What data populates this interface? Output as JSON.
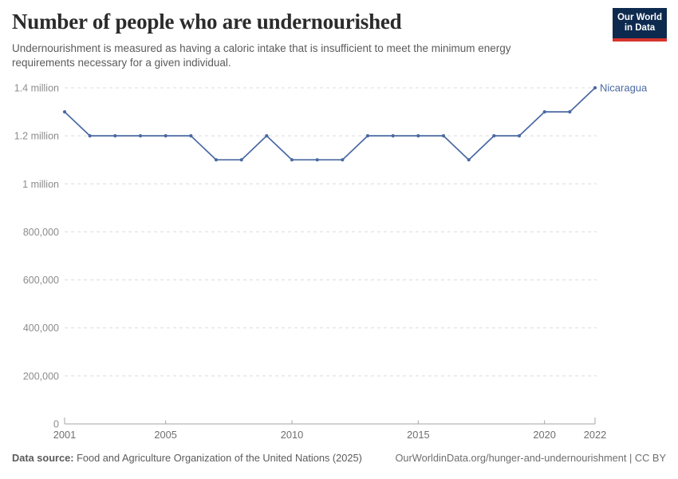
{
  "chart_data": {
    "type": "line",
    "title": "Number of people who are undernourished",
    "subtitle": "Undernourishment is measured as having a caloric intake that is insufficient to meet the minimum energy requirements necessary for a given individual.",
    "xlabel": "",
    "ylabel": "",
    "xlim": [
      2001,
      2022
    ],
    "ylim": [
      0,
      1400000
    ],
    "grid": true,
    "legend_position": "end-of-line",
    "series": [
      {
        "name": "Nicaragua",
        "color": "#4a69a2",
        "x": [
          2001,
          2002,
          2003,
          2004,
          2005,
          2006,
          2007,
          2008,
          2009,
          2010,
          2011,
          2012,
          2013,
          2014,
          2015,
          2016,
          2017,
          2018,
          2019,
          2020,
          2021,
          2022
        ],
        "values": [
          1300000,
          1200000,
          1200000,
          1200000,
          1200000,
          1200000,
          1100000,
          1100000,
          1200000,
          1100000,
          1100000,
          1100000,
          1200000,
          1200000,
          1200000,
          1200000,
          1100000,
          1200000,
          1200000,
          1300000,
          1300000,
          1400000
        ]
      }
    ],
    "x_ticks": [
      {
        "value": 2001,
        "label": "2001"
      },
      {
        "value": 2005,
        "label": "2005"
      },
      {
        "value": 2010,
        "label": "2010"
      },
      {
        "value": 2015,
        "label": "2015"
      },
      {
        "value": 2020,
        "label": "2020"
      },
      {
        "value": 2022,
        "label": "2022"
      }
    ],
    "y_ticks": [
      {
        "value": 0,
        "label": "0"
      },
      {
        "value": 200000,
        "label": "200,000"
      },
      {
        "value": 400000,
        "label": "400,000"
      },
      {
        "value": 600000,
        "label": "600,000"
      },
      {
        "value": 800000,
        "label": "800,000"
      },
      {
        "value": 1000000,
        "label": "1 million"
      },
      {
        "value": 1200000,
        "label": "1.2 million"
      },
      {
        "value": 1400000,
        "label": "1.4 million"
      }
    ]
  },
  "logo": {
    "line1": "Our World",
    "line2": "in Data",
    "bg_color": "#0d2a4e",
    "accent_color": "#d7342c"
  },
  "footer": {
    "datasource_label": "Data source:",
    "datasource_text": " Food and Agriculture Organization of the United Nations (2025)",
    "link_text": "OurWorldinData.org/hunger-and-undernourishment | CC BY"
  }
}
